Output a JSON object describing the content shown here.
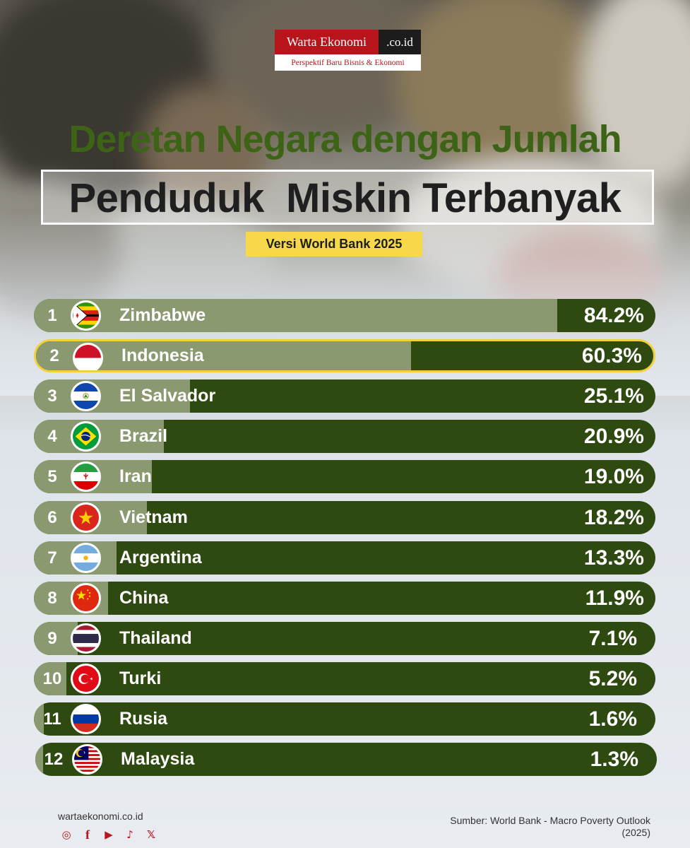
{
  "logo": {
    "brand": "Warta Ekonomi",
    "domain": ".co.id",
    "tagline": "Perspektif Baru Bisnis & Ekonomi"
  },
  "chart_data": {
    "type": "bar",
    "orientation": "horizontal",
    "title_line1": "Deretan Negara dengan Jumlah",
    "title_line2": "Penduduk  Miskin Terbanyak",
    "subtitle": "Versi World Bank 2025",
    "unit": "%",
    "xlim": [
      0,
      100
    ],
    "highlight": "Indonesia",
    "rows": [
      {
        "rank": "1",
        "country": "Zimbabwe",
        "label": "84.2%",
        "value": 84.2,
        "flag": "zimbabwe-flag"
      },
      {
        "rank": "2",
        "country": "Indonesia",
        "label": "60.3%",
        "value": 60.3,
        "flag": "indonesia-flag"
      },
      {
        "rank": "3",
        "country": "El Salvador",
        "label": "25.1%",
        "value": 25.1,
        "flag": "el-salvador-flag"
      },
      {
        "rank": "4",
        "country": "Brazil",
        "label": "20.9%",
        "value": 20.9,
        "flag": "brazil-flag"
      },
      {
        "rank": "5",
        "country": "Iran",
        "label": "19.0%",
        "value": 19.0,
        "flag": "iran-flag"
      },
      {
        "rank": "6",
        "country": "Vietnam",
        "label": "18.2%",
        "value": 18.2,
        "flag": "vietnam-flag"
      },
      {
        "rank": "7",
        "country": "Argentina",
        "label": "13.3%",
        "value": 13.3,
        "flag": "argentina-flag"
      },
      {
        "rank": "8",
        "country": "China",
        "label": "11.9%",
        "value": 11.9,
        "flag": "china-flag"
      },
      {
        "rank": "9",
        "country": "Thailand",
        "label": "7.1%",
        "value": 7.1,
        "flag": "thailand-flag"
      },
      {
        "rank": "10",
        "country": "Turki",
        "label": "5.2%",
        "value": 5.2,
        "flag": "turkey-flag"
      },
      {
        "rank": "11",
        "country": "Rusia",
        "label": "1.6%",
        "value": 1.6,
        "flag": "russia-flag"
      },
      {
        "rank": "12",
        "country": "Malaysia",
        "label": "1.3%",
        "value": 1.3,
        "flag": "malaysia-flag"
      }
    ],
    "colors": {
      "row_background": "#2e4a10",
      "bar_fill": "#8a9970",
      "highlight_border": "#f2cf3f",
      "title_green": "#3d6317",
      "subtitle_bg": "#f6d84a"
    }
  },
  "footer": {
    "website": "wartaekonomi.co.id",
    "source": "Sumber: World Bank - Macro Poverty Outlook (2025)",
    "socials": [
      "instagram-icon",
      "facebook-icon",
      "youtube-icon",
      "tiktok-icon",
      "x-icon"
    ]
  }
}
